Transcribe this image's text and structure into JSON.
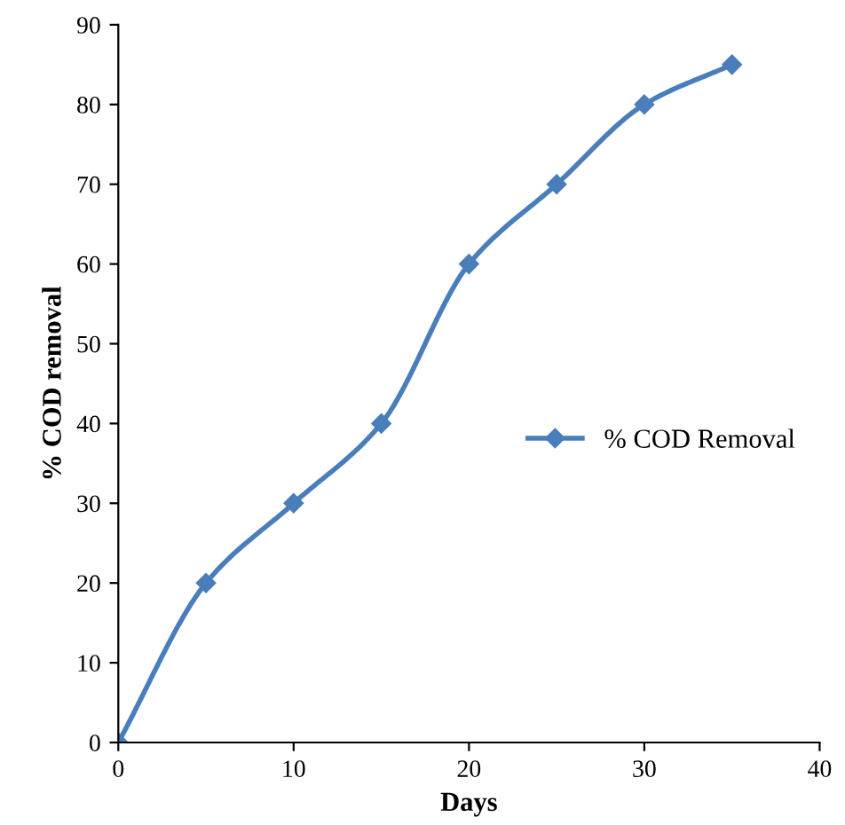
{
  "chart_data": {
    "type": "line",
    "xlabel": "Days",
    "ylabel": "% COD removal",
    "x": [
      0,
      5,
      10,
      15,
      20,
      25,
      30,
      35
    ],
    "series": [
      {
        "name": "% COD Removal",
        "color": "#4a7ebb",
        "values": [
          0,
          20,
          30,
          40,
          60,
          70,
          80,
          85
        ]
      }
    ],
    "xlim": [
      0,
      40
    ],
    "xticks": [
      0,
      10,
      20,
      30,
      40
    ],
    "ylim": [
      0,
      90
    ],
    "yticks": [
      0,
      10,
      20,
      30,
      40,
      50,
      60,
      70,
      80,
      90
    ],
    "grid": false,
    "legend": "right",
    "marker": "diamond",
    "line_style": "solid"
  }
}
